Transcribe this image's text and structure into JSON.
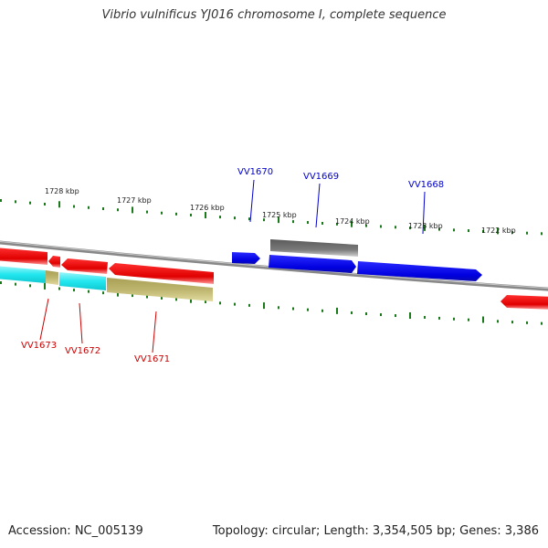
{
  "map": {
    "title": "Vibrio vulnificus YJ016 chromosome I, complete sequence",
    "accession_label": "Accession: NC_005139",
    "summary_label": "Topology: circular; Length: 3,354,505 bp; Genes: 3,386"
  },
  "scale": {
    "unit": "kbp",
    "ticks": [
      {
        "label": "1728 kbp",
        "kbp": 1728
      },
      {
        "label": "1727 kbp",
        "kbp": 1727
      },
      {
        "label": "1726 kbp",
        "kbp": 1726
      },
      {
        "label": "1725 kbp",
        "kbp": 1725
      },
      {
        "label": "1724 kbp",
        "kbp": 1724
      },
      {
        "label": "1723 kbp",
        "kbp": 1723
      },
      {
        "label": "1722 kbp",
        "kbp": 1722
      }
    ]
  },
  "genes": {
    "forward_labels": [
      {
        "id": "VV1670",
        "label": "VV1670"
      },
      {
        "id": "VV1669",
        "label": "VV1669"
      },
      {
        "id": "VV1668",
        "label": "VV1668"
      }
    ],
    "reverse_labels": [
      {
        "id": "VV1673",
        "label": "VV1673"
      },
      {
        "id": "VV1672",
        "label": "VV1672"
      },
      {
        "id": "VV1671",
        "label": "VV1671"
      }
    ]
  },
  "colors": {
    "forward_gene": "#0000ee",
    "reverse_gene": "#ee0000",
    "forward_label": "#0000cc",
    "reverse_label": "#cc0000",
    "tick": "#1a7a1a",
    "backbone": "#888888",
    "grey_feature": "#707070",
    "cyan_feature": "#22e6ee",
    "khaki_feature": "#bdb56e"
  }
}
